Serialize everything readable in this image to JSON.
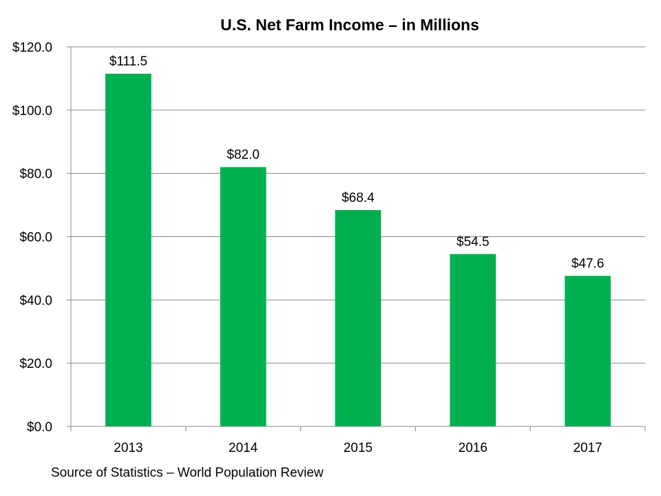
{
  "chart_data": {
    "type": "bar",
    "title": "U.S. Net Farm Income – in Millions",
    "categories": [
      "2013",
      "2014",
      "2015",
      "2016",
      "2017"
    ],
    "values": [
      111.5,
      82.0,
      68.4,
      54.5,
      47.6
    ],
    "data_labels": [
      "$111.5",
      "$82.0",
      "$68.4",
      "$54.5",
      "$47.6"
    ],
    "y_ticks": [
      0,
      20,
      40,
      60,
      80,
      100,
      120
    ],
    "y_tick_labels": [
      "$0.0",
      "$20.0",
      "$40.0",
      "$60.0",
      "$80.0",
      "$100.0",
      "$120.0"
    ],
    "ylim": [
      0,
      120
    ],
    "xlabel": "",
    "ylabel": "",
    "grid": true,
    "legend": "none",
    "bar_color": "#00B050",
    "grid_color": "#878787"
  },
  "source_note": "Source of Statistics – World Population Review"
}
